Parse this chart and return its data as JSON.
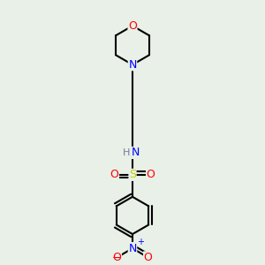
{
  "bg_color": "#e8f0e8",
  "atom_colors": {
    "C": "#000000",
    "H": "#708090",
    "N": "#0000ff",
    "O": "#ff0000",
    "S": "#cccc00"
  },
  "bond_color": "#000000",
  "figsize": [
    3.0,
    3.0
  ],
  "dpi": 100
}
